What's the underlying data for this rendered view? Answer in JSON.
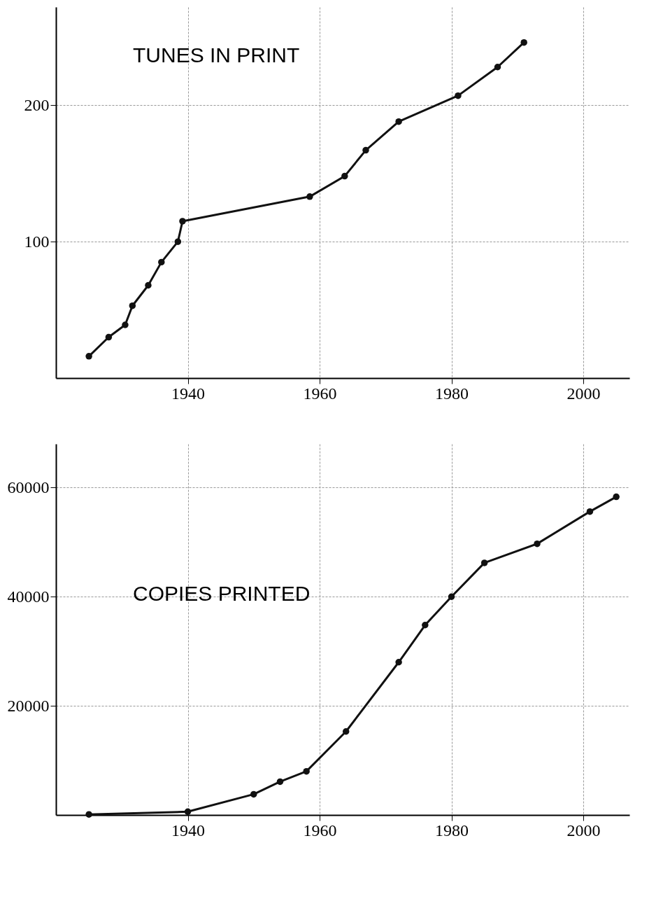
{
  "chart_data": [
    {
      "type": "line",
      "title": "TUNES IN PRINT",
      "x": [
        1925,
        1928,
        1930.5,
        1931.6,
        1934,
        1936,
        1938.5,
        1939.2,
        1958.5,
        1963.8,
        1967,
        1972,
        1981,
        1987,
        1991
      ],
      "series": [
        {
          "color": "#111111",
          "values": [
            16,
            30,
            39,
            53,
            68,
            85,
            100,
            115,
            133,
            148,
            167,
            188,
            207,
            228,
            246
          ]
        }
      ],
      "xlim": [
        1920,
        2007
      ],
      "xticks": [
        1940,
        1960,
        1980,
        2000
      ],
      "ylim": [
        0,
        272
      ],
      "yticks": [
        100,
        200
      ],
      "grid": true,
      "marker": "circle",
      "line_style": "solid"
    },
    {
      "type": "line",
      "title": "COPIES PRINTED",
      "x": [
        1925,
        1940,
        1950,
        1954,
        1958,
        1964,
        1972,
        1976,
        1980,
        1985,
        1993,
        2001,
        2005
      ],
      "series": [
        {
          "color": "#111111",
          "values": [
            100,
            600,
            3800,
            6100,
            8000,
            15300,
            28000,
            34800,
            40000,
            46200,
            49700,
            55600,
            58300
          ]
        }
      ],
      "xlim": [
        1920,
        2007
      ],
      "xticks": [
        1940,
        1960,
        1980,
        2000
      ],
      "ylim": [
        0,
        68000
      ],
      "yticks": [
        20000,
        40000,
        60000
      ],
      "grid": true,
      "marker": "circle",
      "line_style": "solid"
    }
  ]
}
